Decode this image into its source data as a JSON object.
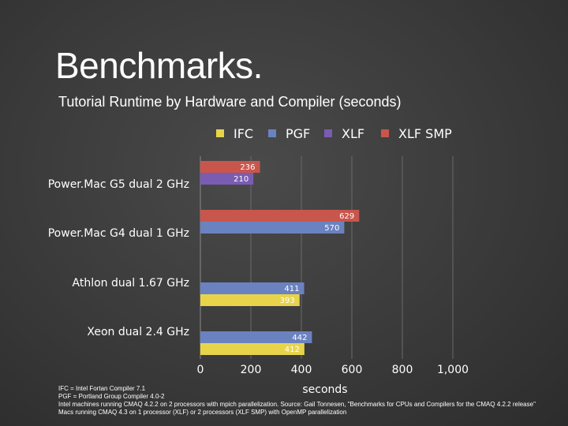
{
  "slide": {
    "title": "Benchmarks.",
    "subtitle": "Tutorial Runtime by Hardware and Compiler (seconds)"
  },
  "chart_data": {
    "type": "bar",
    "orientation": "horizontal",
    "categories": [
      "Power.Mac G5 dual 2 GHz",
      "Power.Mac G4 dual 1 GHz",
      "Athlon dual 1.67 GHz",
      "Xeon dual 2.4 GHz"
    ],
    "series": [
      {
        "name": "IFC",
        "color": "#e8d44a",
        "values": [
          null,
          null,
          393,
          412
        ]
      },
      {
        "name": "PGF",
        "color": "#6b82c0",
        "values": [
          null,
          570,
          411,
          442
        ]
      },
      {
        "name": "XLF",
        "color": "#7a5cb3",
        "values": [
          210,
          null,
          null,
          null
        ]
      },
      {
        "name": "XLF SMP",
        "color": "#c9564c",
        "values": [
          236,
          629,
          null,
          null
        ]
      }
    ],
    "bar_labels": [
      {
        "category": 0,
        "series": 3,
        "text": "236"
      },
      {
        "category": 0,
        "series": 2,
        "text": "210"
      },
      {
        "category": 1,
        "series": 3,
        "text": "629"
      },
      {
        "category": 1,
        "series": 1,
        "text": "570"
      },
      {
        "category": 2,
        "series": 1,
        "text": "411"
      },
      {
        "category": 2,
        "series": 0,
        "text": "393"
      },
      {
        "category": 3,
        "series": 1,
        "text": "442"
      },
      {
        "category": 3,
        "series": 0,
        "text": "412"
      }
    ],
    "xlim": [
      0,
      1000
    ],
    "x_ticks": [
      0,
      200,
      400,
      600,
      800,
      1000
    ],
    "x_tick_labels": [
      "0",
      "200",
      "400",
      "600",
      "800",
      "1,000"
    ],
    "xlabel": "seconds",
    "grid": "vertical",
    "legend_placement": "top"
  },
  "footnotes": [
    "IFC = Intel Fortan Compiler 7.1",
    "PGF = Portland Group Compiler 4.0-2",
    "Intel machines running CMAQ 4.2.2 on 2 processors with mpich parallelization. Source: Gail Tonnesen, \"Benchmarks for CPUs and Compilers for the CMAQ 4.2.2 release\"",
    "Macs running CMAQ 4.3 on 1 processor (XLF) or 2 processors (XLF SMP) with OpenMP parallelization"
  ]
}
